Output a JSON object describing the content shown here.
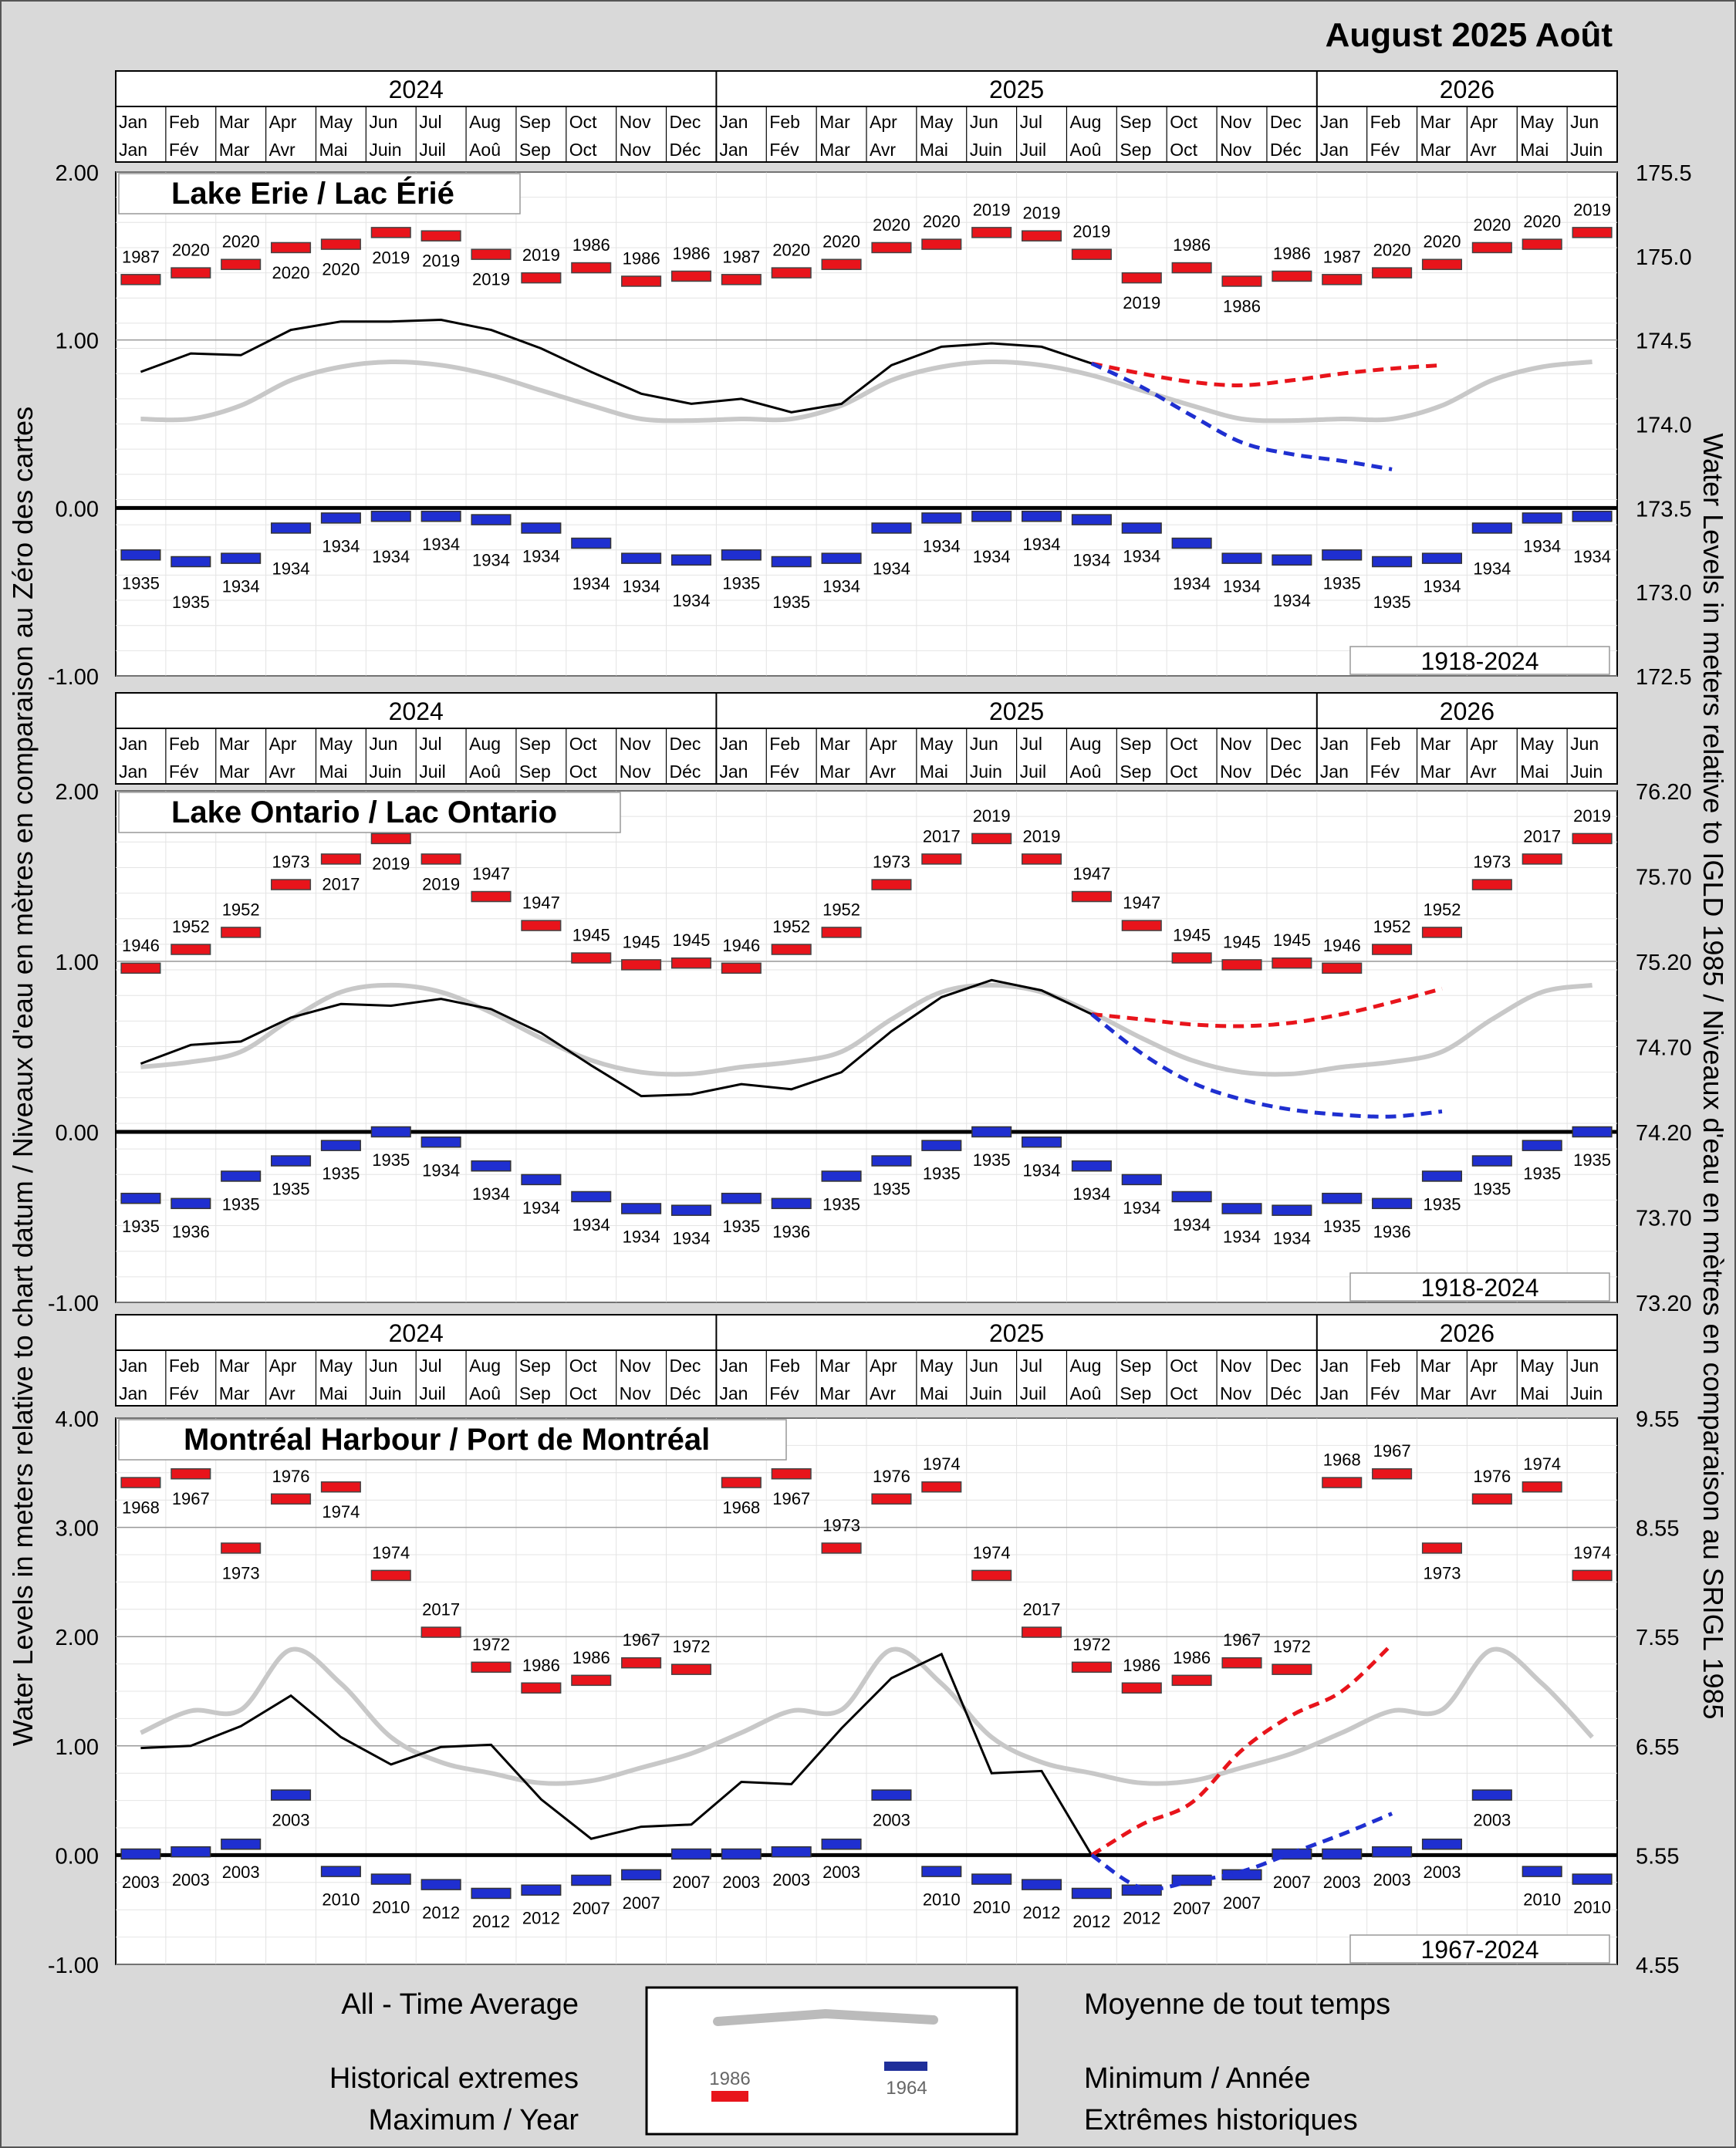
{
  "header": {
    "title": "August 2025 Août"
  },
  "axis_titles": {
    "left": "Water Levels in meters relative to chart datum / Niveaux d'eau en mètres en comparaison au Zéro des cartes",
    "right": "Water Levels in meters relative to IGLD 1985 / Niveaux d'eau en mètres en comparaison au SRIGL 1985"
  },
  "timeline": {
    "years": [
      "2024",
      "2025",
      "2026"
    ],
    "months_en": [
      "Jan",
      "Feb",
      "Mar",
      "Apr",
      "May",
      "Jun",
      "Jul",
      "Aug",
      "Sep",
      "Oct",
      "Nov",
      "Dec",
      "Jan",
      "Feb",
      "Mar",
      "Apr",
      "May",
      "Jun",
      "Jul",
      "Aug",
      "Sep",
      "Oct",
      "Nov",
      "Dec",
      "Jan",
      "Feb",
      "Mar",
      "Apr",
      "May",
      "Jun"
    ],
    "months_fr": [
      "Jan",
      "Fév",
      "Mar",
      "Avr",
      "Mai",
      "Juin",
      "Juil",
      "Aoû",
      "Sep",
      "Oct",
      "Nov",
      "Déc",
      "Jan",
      "Fév",
      "Mar",
      "Avr",
      "Mai",
      "Juin",
      "Juil",
      "Aoû",
      "Sep",
      "Oct",
      "Nov",
      "Déc",
      "Jan",
      "Fév",
      "Mar",
      "Avr",
      "Mai",
      "Juin"
    ]
  },
  "legend": {
    "average_en": "All - Time Average",
    "average_fr": "Moyenne de tout temps",
    "extremes_en": "Historical extremes",
    "max_en": "Maximum / Year",
    "min_fr": "Minimum / Année",
    "extremes_fr": "Extrêmes historiques",
    "sample_max_year": "1986",
    "sample_min_year": "1964",
    "colors": {
      "max": "#e8141b",
      "min": "#1f2fd0",
      "average": "#c8c8c8",
      "recorded": "#000000"
    }
  },
  "chart_data": [
    {
      "type": "line",
      "title": "Lake Erie / Lac Érié",
      "period": "1918-2024",
      "ylim_left": [
        -1.0,
        2.0
      ],
      "ylim_right": [
        172.5,
        175.5
      ],
      "yticks_left": [
        "2.00",
        "1.00",
        "0.00",
        "-1.00"
      ],
      "yticks_right": [
        "175.5",
        "175.0",
        "174.5",
        "174.0",
        "173.5",
        "173.0",
        "172.5"
      ],
      "max_values": [
        1.36,
        1.4,
        1.45,
        1.55,
        1.57,
        1.64,
        1.62,
        1.51,
        1.37,
        1.43,
        1.35,
        1.38,
        1.36,
        1.4,
        1.45,
        1.55,
        1.57,
        1.64,
        1.62,
        1.51,
        1.37,
        1.43,
        1.35,
        1.38,
        1.36,
        1.4,
        1.45,
        1.55,
        1.57,
        1.64
      ],
      "max_years": [
        "1987",
        "2020",
        "2020",
        "2020",
        "2020",
        "2019",
        "2019",
        "2019",
        "2019",
        "1986",
        "1986",
        "1986",
        "1987",
        "2020",
        "2020",
        "2020",
        "2020",
        "2019",
        "2019",
        "2019",
        "2019",
        "1986",
        "1986",
        "1986",
        "1987",
        "2020",
        "2020",
        "2020",
        "2020",
        "2019"
      ],
      "max_label_pos": [
        "a",
        "a",
        "a",
        "b",
        "b",
        "b",
        "b",
        "b",
        "a",
        "a",
        "a",
        "a",
        "a",
        "a",
        "a",
        "a",
        "a",
        "a",
        "a",
        "a",
        "b",
        "a",
        "b",
        "a",
        "a",
        "a",
        "a",
        "a",
        "a",
        "a"
      ],
      "min_values": [
        -0.28,
        -0.32,
        -0.3,
        -0.12,
        -0.06,
        -0.05,
        -0.05,
        -0.07,
        -0.12,
        -0.21,
        -0.3,
        -0.31,
        -0.28,
        -0.32,
        -0.3,
        -0.12,
        -0.06,
        -0.05,
        -0.05,
        -0.07,
        -0.12,
        -0.21,
        -0.3,
        -0.31,
        -0.28,
        -0.32,
        -0.3,
        -0.12,
        -0.06,
        -0.05
      ],
      "min_years": [
        "1935",
        "1935",
        "1934",
        "1934",
        "1934",
        "1934",
        "1934",
        "1934",
        "1934",
        "1934",
        "1934",
        "1934",
        "1935",
        "1935",
        "1934",
        "1934",
        "1934",
        "1934",
        "1934",
        "1934",
        "1934",
        "1934",
        "1934",
        "1934",
        "1935",
        "1935",
        "1934",
        "1934",
        "1934",
        "1934"
      ],
      "average": [
        0.53,
        0.53,
        0.61,
        0.76,
        0.84,
        0.87,
        0.85,
        0.79,
        0.7,
        0.61,
        0.53,
        0.52,
        0.53,
        0.53,
        0.61,
        0.76,
        0.84,
        0.87,
        0.85,
        0.79,
        0.7,
        0.61,
        0.53,
        0.52,
        0.53,
        0.53,
        0.61,
        0.76,
        0.84,
        0.87
      ],
      "recorded": [
        0.81,
        0.92,
        0.91,
        1.06,
        1.11,
        1.11,
        1.12,
        1.06,
        0.95,
        0.81,
        0.68,
        0.62,
        0.65,
        0.57,
        0.62,
        0.85,
        0.96,
        0.98,
        0.96,
        0.86
      ],
      "forecast_high": [
        0.86,
        0.8,
        0.75,
        0.73,
        0.76,
        0.8,
        0.83,
        0.85
      ],
      "forecast_low": [
        0.86,
        0.72,
        0.55,
        0.39,
        0.32,
        0.28,
        0.23
      ],
      "forecast_start_index": 19
    },
    {
      "type": "line",
      "title": "Lake Ontario / Lac Ontario",
      "period": "1918-2024",
      "ylim_left": [
        -1.0,
        2.0
      ],
      "ylim_right": [
        73.2,
        76.2
      ],
      "yticks_left": [
        "2.00",
        "1.00",
        "0.00",
        "-1.00"
      ],
      "yticks_right": [
        "76.20",
        "75.70",
        "75.20",
        "74.70",
        "74.20",
        "73.70",
        "73.20"
      ],
      "max_values": [
        0.96,
        1.07,
        1.17,
        1.45,
        1.6,
        1.72,
        1.6,
        1.38,
        1.21,
        1.02,
        0.98,
        0.99,
        0.96,
        1.07,
        1.17,
        1.45,
        1.6,
        1.72,
        1.6,
        1.38,
        1.21,
        1.02,
        0.98,
        0.99,
        0.96,
        1.07,
        1.17,
        1.45,
        1.6,
        1.72
      ],
      "max_years": [
        "1946",
        "1952",
        "1952",
        "1973",
        "2017",
        "2019",
        "2019",
        "1947",
        "1947",
        "1945",
        "1945",
        "1945",
        "1946",
        "1952",
        "1952",
        "1973",
        "2017",
        "2019",
        "2019",
        "1947",
        "1947",
        "1945",
        "1945",
        "1945",
        "1946",
        "1952",
        "1952",
        "1973",
        "2017",
        "2019"
      ],
      "max_label_pos": [
        "a",
        "a",
        "a",
        "a",
        "b",
        "b",
        "b",
        "a",
        "a",
        "a",
        "a",
        "a",
        "a",
        "a",
        "a",
        "a",
        "a",
        "a",
        "a",
        "a",
        "a",
        "a",
        "a",
        "a",
        "a",
        "a",
        "a",
        "a",
        "a",
        "a"
      ],
      "min_values": [
        -0.39,
        -0.42,
        -0.26,
        -0.17,
        -0.08,
        0.0,
        -0.06,
        -0.2,
        -0.28,
        -0.38,
        -0.45,
        -0.46,
        -0.39,
        -0.42,
        -0.26,
        -0.17,
        -0.08,
        0.0,
        -0.06,
        -0.2,
        -0.28,
        -0.38,
        -0.45,
        -0.46,
        -0.39,
        -0.42,
        -0.26,
        -0.17,
        -0.08,
        0.0
      ],
      "min_years": [
        "1935",
        "1936",
        "1935",
        "1935",
        "1935",
        "1935",
        "1934",
        "1934",
        "1934",
        "1934",
        "1934",
        "1934",
        "1935",
        "1936",
        "1935",
        "1935",
        "1935",
        "1935",
        "1934",
        "1934",
        "1934",
        "1934",
        "1934",
        "1934",
        "1935",
        "1936",
        "1935",
        "1935",
        "1935",
        "1935"
      ],
      "average": [
        0.38,
        0.41,
        0.47,
        0.66,
        0.82,
        0.86,
        0.82,
        0.7,
        0.55,
        0.42,
        0.35,
        0.34,
        0.38,
        0.41,
        0.47,
        0.66,
        0.82,
        0.86,
        0.82,
        0.7,
        0.55,
        0.42,
        0.35,
        0.34,
        0.38,
        0.41,
        0.47,
        0.66,
        0.82,
        0.86
      ],
      "recorded": [
        0.4,
        0.51,
        0.53,
        0.67,
        0.75,
        0.74,
        0.78,
        0.72,
        0.58,
        0.39,
        0.21,
        0.22,
        0.28,
        0.25,
        0.35,
        0.59,
        0.79,
        0.89,
        0.83,
        0.69
      ],
      "forecast_high": [
        0.69,
        0.66,
        0.63,
        0.62,
        0.64,
        0.69,
        0.76,
        0.84
      ],
      "forecast_low": [
        0.69,
        0.46,
        0.29,
        0.19,
        0.13,
        0.1,
        0.09,
        0.12
      ],
      "forecast_start_index": 19
    },
    {
      "type": "line",
      "title": "Montréal Harbour / Port de Montréal",
      "period": "1967-2024",
      "ylim_left": [
        -1.0,
        4.0
      ],
      "ylim_right": [
        4.55,
        9.55
      ],
      "yticks_left": [
        "4.00",
        "3.00",
        "2.00",
        "1.00",
        "0.00",
        "-1.00"
      ],
      "yticks_right": [
        "9.55",
        "8.55",
        "7.55",
        "6.55",
        "5.55",
        "4.55"
      ],
      "max_values": [
        3.41,
        3.49,
        2.81,
        3.26,
        3.37,
        2.56,
        2.04,
        1.72,
        1.53,
        1.6,
        1.76,
        1.7,
        3.41,
        3.49,
        2.81,
        3.26,
        3.37,
        2.56,
        2.04,
        1.72,
        1.53,
        1.6,
        1.76,
        1.7,
        3.41,
        3.49,
        2.81,
        3.26,
        3.37,
        2.56
      ],
      "max_years": [
        "1968",
        "1967",
        "1973",
        "1976",
        "1974",
        "1974",
        "2017",
        "1972",
        "1986",
        "1986",
        "1967",
        "1972",
        "1968",
        "1967",
        "1973",
        "1976",
        "1974",
        "1974",
        "2017",
        "1972",
        "1986",
        "1986",
        "1967",
        "1972",
        "1968",
        "1967",
        "1973",
        "1976",
        "1974",
        "1974"
      ],
      "max_label_pos": [
        "b",
        "b",
        "b",
        "a",
        "b",
        "a",
        "a",
        "a",
        "a",
        "a",
        "a",
        "a",
        "b",
        "b",
        "a",
        "a",
        "a",
        "a",
        "a",
        "a",
        "a",
        "a",
        "a",
        "a",
        "a",
        "a",
        "b",
        "a",
        "a",
        "a"
      ],
      "min_values": [
        0.01,
        0.03,
        0.1,
        0.55,
        -0.15,
        -0.22,
        -0.27,
        -0.35,
        -0.32,
        -0.23,
        -0.18,
        0.01,
        0.01,
        0.03,
        0.1,
        0.55,
        -0.15,
        -0.22,
        -0.27,
        -0.35,
        -0.32,
        -0.23,
        -0.18,
        0.01,
        0.01,
        0.03,
        0.1,
        0.55,
        -0.15,
        -0.22
      ],
      "min_years": [
        "2003",
        "2003",
        "2003",
        "2003",
        "2010",
        "2010",
        "2012",
        "2012",
        "2012",
        "2007",
        "2007",
        "2007",
        "2003",
        "2003",
        "2003",
        "2003",
        "2010",
        "2010",
        "2012",
        "2012",
        "2012",
        "2007",
        "2007",
        "2007",
        "2003",
        "2003",
        "2003",
        "2003",
        "2010",
        "2010"
      ],
      "average": [
        1.12,
        1.32,
        1.33,
        1.88,
        1.57,
        1.08,
        0.85,
        0.75,
        0.66,
        0.68,
        0.8,
        0.93,
        1.12,
        1.32,
        1.33,
        1.88,
        1.57,
        1.08,
        0.85,
        0.75,
        0.66,
        0.68,
        0.8,
        0.93,
        1.12,
        1.32,
        1.33,
        1.88,
        1.57,
        1.08
      ],
      "recorded": [
        0.98,
        1.0,
        1.18,
        1.46,
        1.08,
        0.83,
        0.99,
        1.01,
        0.51,
        0.15,
        0.26,
        0.28,
        0.67,
        0.65,
        1.16,
        1.62,
        1.84,
        0.75,
        0.77,
        0.0
      ],
      "forecast_high": [
        0.0,
        0.28,
        0.48,
        0.96,
        1.28,
        1.5,
        1.93
      ],
      "forecast_low": [
        0.0,
        -0.3,
        -0.24,
        -0.15,
        0.02,
        0.19,
        0.38
      ],
      "forecast_start_index": 19
    }
  ]
}
